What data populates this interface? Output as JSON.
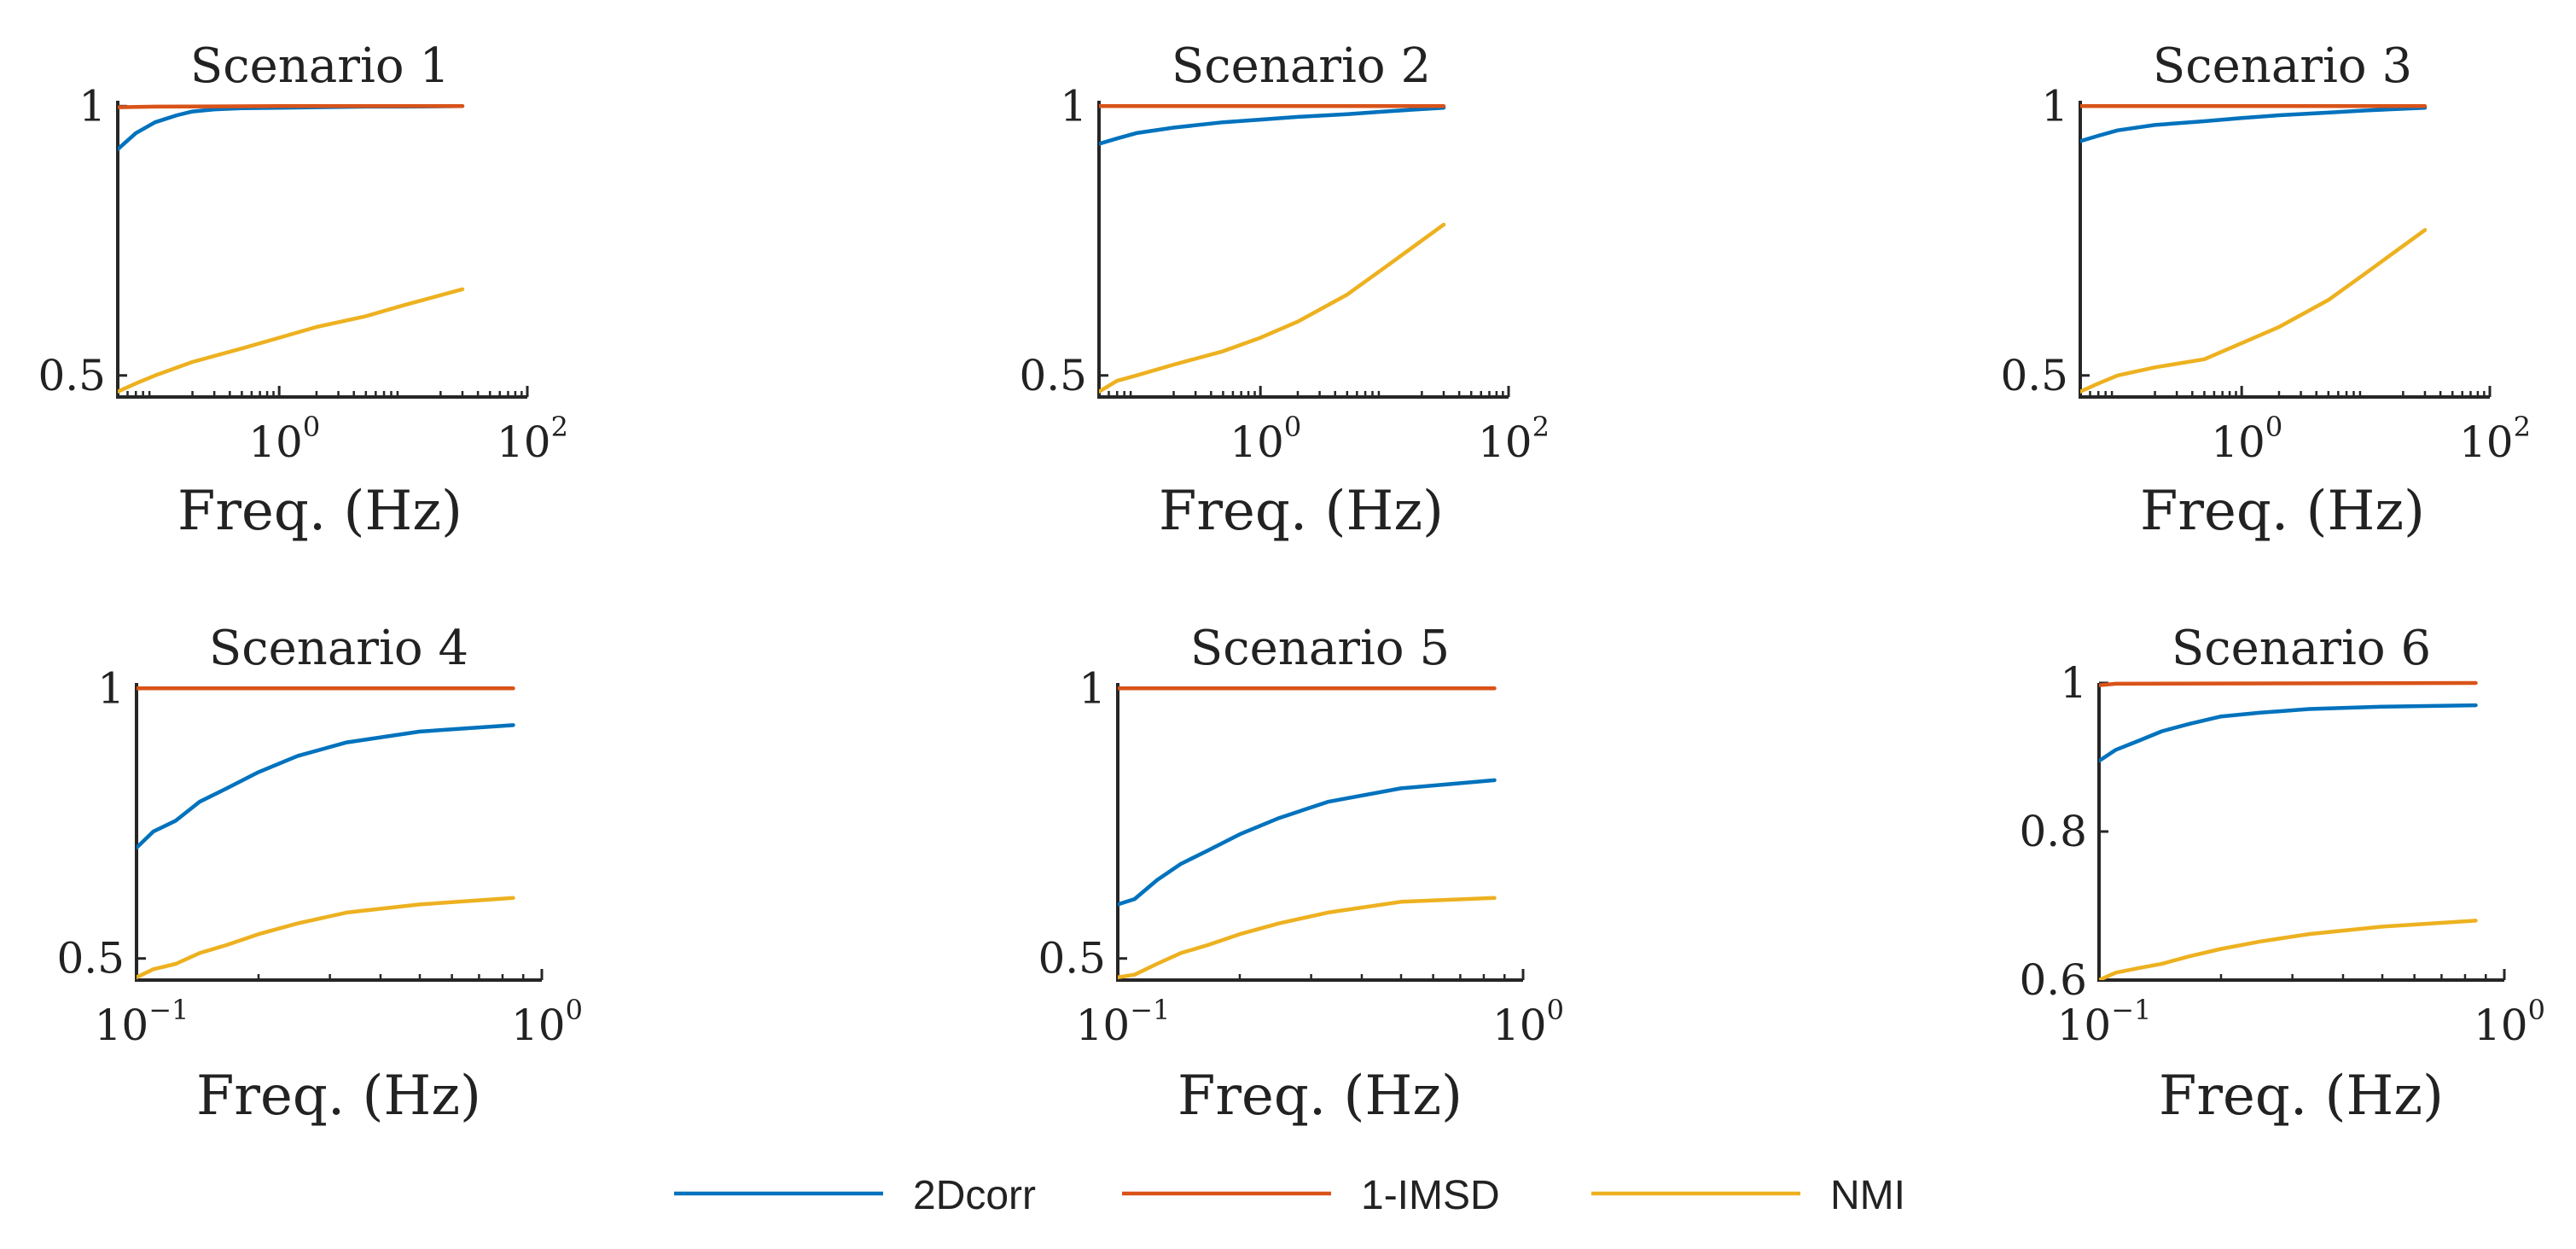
{
  "colors": {
    "2Dcorr": "#0072bd",
    "1-IMSD": "#d95319",
    "NMI": "#edb120"
  },
  "legend": {
    "items": [
      {
        "label": "2Dcorr",
        "color": "#0072bd"
      },
      {
        "label": "1-IMSD",
        "color": "#d95319"
      },
      {
        "label": "NMI",
        "color": "#edb120"
      }
    ],
    "location": "bottom-center"
  },
  "chart_data": [
    {
      "type": "line",
      "title": "Scenario 1",
      "xlabel": "Freq. (Hz)",
      "ylabel": "",
      "xscale": "log",
      "xlim": [
        0.05,
        100
      ],
      "ylim": [
        0.46,
        1.01
      ],
      "xticks": [
        {
          "value": 1,
          "base": "10",
          "exp": "0"
        },
        {
          "value": 100,
          "base": "10",
          "exp": "2"
        }
      ],
      "yticks": [
        {
          "value": 0.5,
          "label": "0.5"
        },
        {
          "value": 1,
          "label": "1"
        }
      ],
      "series": [
        {
          "name": "2Dcorr",
          "x": [
            0.05,
            0.07,
            0.1,
            0.15,
            0.2,
            0.3,
            0.5,
            1,
            2,
            5,
            10,
            30
          ],
          "y": [
            0.92,
            0.95,
            0.97,
            0.983,
            0.99,
            0.994,
            0.996,
            0.997,
            0.998,
            0.999,
            0.999,
            1.0
          ]
        },
        {
          "name": "1-IMSD",
          "x": [
            0.05,
            0.1,
            1,
            10,
            30
          ],
          "y": [
            0.998,
            0.999,
            1.0,
            1.0,
            1.0
          ]
        },
        {
          "name": "NMI",
          "x": [
            0.05,
            0.07,
            0.1,
            0.2,
            0.5,
            1,
            2,
            5,
            10,
            30
          ],
          "y": [
            0.47,
            0.485,
            0.5,
            0.525,
            0.55,
            0.57,
            0.59,
            0.61,
            0.63,
            0.66
          ]
        }
      ]
    },
    {
      "type": "line",
      "title": "Scenario 2",
      "xlabel": "Freq. (Hz)",
      "ylabel": "",
      "xscale": "log",
      "xlim": [
        0.05,
        100
      ],
      "ylim": [
        0.46,
        1.01
      ],
      "xticks": [
        {
          "value": 1,
          "base": "10",
          "exp": "0"
        },
        {
          "value": 100,
          "base": "10",
          "exp": "2"
        }
      ],
      "yticks": [
        {
          "value": 0.5,
          "label": "0.5"
        },
        {
          "value": 1,
          "label": "1"
        }
      ],
      "series": [
        {
          "name": "2Dcorr",
          "x": [
            0.05,
            0.07,
            0.1,
            0.2,
            0.5,
            1,
            2,
            5,
            10,
            30
          ],
          "y": [
            0.93,
            0.94,
            0.95,
            0.96,
            0.97,
            0.975,
            0.98,
            0.985,
            0.99,
            0.997
          ]
        },
        {
          "name": "1-IMSD",
          "x": [
            0.05,
            1,
            30
          ],
          "y": [
            1.0,
            1.0,
            1.0
          ]
        },
        {
          "name": "NMI",
          "x": [
            0.05,
            0.07,
            0.1,
            0.2,
            0.5,
            1,
            2,
            5,
            10,
            30
          ],
          "y": [
            0.47,
            0.49,
            0.5,
            0.52,
            0.545,
            0.57,
            0.6,
            0.65,
            0.7,
            0.78
          ]
        }
      ]
    },
    {
      "type": "line",
      "title": "Scenario 3",
      "xlabel": "Freq. (Hz)",
      "ylabel": "",
      "xscale": "log",
      "xlim": [
        0.05,
        100
      ],
      "ylim": [
        0.46,
        1.01
      ],
      "xticks": [
        {
          "value": 1,
          "base": "10",
          "exp": "0"
        },
        {
          "value": 100,
          "base": "10",
          "exp": "2"
        }
      ],
      "yticks": [
        {
          "value": 0.5,
          "label": "0.5"
        },
        {
          "value": 1,
          "label": "1"
        }
      ],
      "series": [
        {
          "name": "2Dcorr",
          "x": [
            0.05,
            0.07,
            0.1,
            0.2,
            0.5,
            1,
            2,
            5,
            10,
            30
          ],
          "y": [
            0.935,
            0.945,
            0.955,
            0.965,
            0.972,
            0.978,
            0.983,
            0.988,
            0.992,
            0.997
          ]
        },
        {
          "name": "1-IMSD",
          "x": [
            0.05,
            1,
            30
          ],
          "y": [
            1.0,
            1.0,
            1.0
          ]
        },
        {
          "name": "NMI",
          "x": [
            0.05,
            0.07,
            0.1,
            0.2,
            0.5,
            1,
            2,
            5,
            10,
            30
          ],
          "y": [
            0.47,
            0.485,
            0.5,
            0.515,
            0.53,
            0.56,
            0.59,
            0.64,
            0.69,
            0.77
          ]
        }
      ]
    },
    {
      "type": "line",
      "title": "Scenario 4",
      "xlabel": "Freq. (Hz)",
      "ylabel": "",
      "xscale": "log",
      "xlim": [
        0.1,
        1
      ],
      "ylim": [
        0.46,
        1.01
      ],
      "xticks": [
        {
          "value": 0.1,
          "base": "10",
          "exp": "−1"
        },
        {
          "value": 1,
          "base": "10",
          "exp": "0"
        }
      ],
      "yticks": [
        {
          "value": 0.5,
          "label": "0.5"
        },
        {
          "value": 1,
          "label": "1"
        }
      ],
      "series": [
        {
          "name": "2Dcorr",
          "x": [
            0.1,
            0.11,
            0.125,
            0.143,
            0.167,
            0.2,
            0.25,
            0.33,
            0.5,
            0.85
          ],
          "y": [
            0.705,
            0.735,
            0.755,
            0.79,
            0.815,
            0.845,
            0.875,
            0.9,
            0.92,
            0.932
          ]
        },
        {
          "name": "1-IMSD",
          "x": [
            0.1,
            0.85
          ],
          "y": [
            1.0,
            1.0
          ]
        },
        {
          "name": "NMI",
          "x": [
            0.1,
            0.11,
            0.125,
            0.143,
            0.167,
            0.2,
            0.25,
            0.33,
            0.5,
            0.85
          ],
          "y": [
            0.465,
            0.48,
            0.49,
            0.51,
            0.525,
            0.545,
            0.565,
            0.585,
            0.6,
            0.612
          ]
        }
      ]
    },
    {
      "type": "line",
      "title": "Scenario 5",
      "xlabel": "Freq. (Hz)",
      "ylabel": "",
      "xscale": "log",
      "xlim": [
        0.1,
        1
      ],
      "ylim": [
        0.46,
        1.01
      ],
      "xticks": [
        {
          "value": 0.1,
          "base": "10",
          "exp": "−1"
        },
        {
          "value": 1,
          "base": "10",
          "exp": "0"
        }
      ],
      "yticks": [
        {
          "value": 0.5,
          "label": "0.5"
        },
        {
          "value": 1,
          "label": "1"
        }
      ],
      "series": [
        {
          "name": "2Dcorr",
          "x": [
            0.1,
            0.11,
            0.125,
            0.143,
            0.167,
            0.2,
            0.25,
            0.33,
            0.5,
            0.85
          ],
          "y": [
            0.6,
            0.61,
            0.645,
            0.675,
            0.7,
            0.73,
            0.76,
            0.79,
            0.815,
            0.83
          ]
        },
        {
          "name": "1-IMSD",
          "x": [
            0.1,
            0.85
          ],
          "y": [
            1.0,
            1.0
          ]
        },
        {
          "name": "NMI",
          "x": [
            0.1,
            0.11,
            0.125,
            0.143,
            0.167,
            0.2,
            0.25,
            0.33,
            0.5,
            0.85
          ],
          "y": [
            0.465,
            0.47,
            0.49,
            0.51,
            0.525,
            0.545,
            0.565,
            0.585,
            0.605,
            0.612
          ]
        }
      ]
    },
    {
      "type": "line",
      "title": "Scenario 6",
      "xlabel": "Freq. (Hz)",
      "ylabel": "",
      "xscale": "log",
      "xlim": [
        0.1,
        1
      ],
      "ylim": [
        0.6,
        1.0
      ],
      "xticks": [
        {
          "value": 0.1,
          "base": "10",
          "exp": "−1"
        },
        {
          "value": 1,
          "base": "10",
          "exp": "0"
        }
      ],
      "yticks": [
        {
          "value": 0.6,
          "label": "0.6"
        },
        {
          "value": 0.8,
          "label": "0.8"
        },
        {
          "value": 1,
          "label": "1"
        }
      ],
      "series": [
        {
          "name": "2Dcorr",
          "x": [
            0.1,
            0.11,
            0.125,
            0.143,
            0.167,
            0.2,
            0.25,
            0.33,
            0.5,
            0.85
          ],
          "y": [
            0.895,
            0.91,
            0.922,
            0.935,
            0.945,
            0.955,
            0.96,
            0.965,
            0.968,
            0.97
          ]
        },
        {
          "name": "1-IMSD",
          "x": [
            0.1,
            0.11,
            0.85
          ],
          "y": [
            0.997,
            0.999,
            1.0
          ]
        },
        {
          "name": "NMI",
          "x": [
            0.1,
            0.11,
            0.125,
            0.143,
            0.167,
            0.2,
            0.25,
            0.33,
            0.5,
            0.85
          ],
          "y": [
            0.6,
            0.61,
            0.616,
            0.622,
            0.632,
            0.642,
            0.652,
            0.662,
            0.672,
            0.68
          ]
        }
      ]
    }
  ]
}
